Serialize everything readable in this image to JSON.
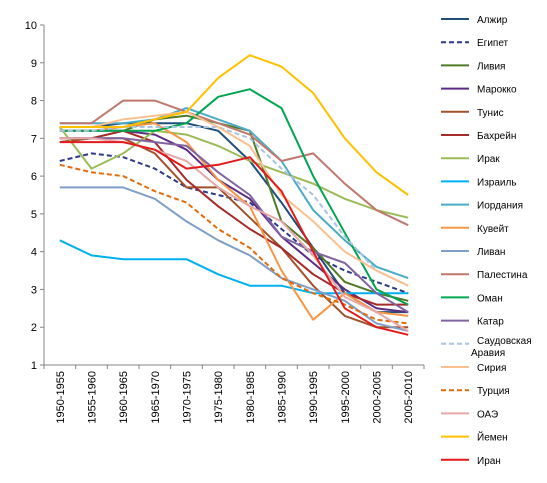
{
  "chart_data": {
    "type": "line",
    "title": "",
    "xlabel": "",
    "ylabel": "",
    "ylim": [
      1,
      10
    ],
    "yticks": [
      "1",
      "2",
      "3",
      "4",
      "5",
      "6",
      "7",
      "8",
      "9",
      "10"
    ],
    "grid": false,
    "legend_position": "right",
    "categories": [
      "1950-1955",
      "1955-1960",
      "1960-1965",
      "1965-1970",
      "1970-1975",
      "1975-1980",
      "1980-1985",
      "1985-1990",
      "1990-1995",
      "1995-2000",
      "2000-2005",
      "2005-2010"
    ],
    "series": [
      {
        "name": "Алжир",
        "color": "#1F4E79",
        "dash": "solid",
        "values": [
          7.3,
          7.3,
          7.4,
          7.4,
          7.4,
          7.2,
          6.4,
          5.3,
          4.1,
          2.9,
          2.4,
          2.4
        ]
      },
      {
        "name": "Египет",
        "color": "#2E3A87",
        "dash": "dashed",
        "values": [
          6.4,
          6.6,
          6.5,
          6.2,
          5.7,
          5.5,
          5.3,
          4.6,
          3.9,
          3.5,
          3.2,
          2.9
        ]
      },
      {
        "name": "Ливия",
        "color": "#4F7A28",
        "dash": "solid",
        "values": [
          6.9,
          7.0,
          7.2,
          7.5,
          7.6,
          7.4,
          7.2,
          4.8,
          4.1,
          3.2,
          2.9,
          2.7
        ]
      },
      {
        "name": "Марокко",
        "color": "#5B2C82",
        "dash": "solid",
        "values": [
          7.2,
          7.2,
          7.2,
          7.1,
          6.7,
          5.9,
          5.4,
          4.4,
          3.7,
          3.0,
          2.5,
          2.4
        ]
      },
      {
        "name": "Тунис",
        "color": "#A0522D",
        "dash": "solid",
        "values": [
          6.9,
          7.0,
          7.0,
          6.6,
          5.7,
          5.7,
          4.9,
          4.1,
          3.1,
          2.3,
          2.0,
          2.0
        ]
      },
      {
        "name": "Бахрейн",
        "color": "#A52A2A",
        "dash": "solid",
        "values": [
          7.0,
          7.0,
          7.2,
          6.9,
          5.9,
          5.2,
          4.6,
          4.1,
          3.4,
          2.9,
          2.6,
          2.6
        ]
      },
      {
        "name": "Ирак",
        "color": "#9BBB59",
        "dash": "solid",
        "values": [
          7.3,
          6.2,
          6.6,
          7.2,
          7.1,
          6.8,
          6.4,
          6.1,
          5.8,
          5.4,
          5.1,
          4.9
        ]
      },
      {
        "name": "Израиль",
        "color": "#00B0F0",
        "dash": "solid",
        "values": [
          4.3,
          3.9,
          3.8,
          3.8,
          3.8,
          3.4,
          3.1,
          3.1,
          2.9,
          2.9,
          2.9,
          2.9
        ]
      },
      {
        "name": "Иордания",
        "color": "#4BACC6",
        "dash": "solid",
        "values": [
          7.4,
          7.4,
          7.4,
          7.5,
          7.8,
          7.5,
          7.2,
          6.4,
          5.1,
          4.3,
          3.6,
          3.3
        ]
      },
      {
        "name": "Кувейт",
        "color": "#F79646",
        "dash": "solid",
        "values": [
          7.2,
          7.2,
          7.3,
          7.4,
          6.9,
          5.9,
          5.2,
          3.5,
          2.2,
          2.9,
          2.4,
          2.3
        ]
      },
      {
        "name": "Ливан",
        "color": "#7F9FC8",
        "dash": "solid",
        "values": [
          5.7,
          5.7,
          5.7,
          5.4,
          4.8,
          4.3,
          3.9,
          3.3,
          3.0,
          2.7,
          2.1,
          1.9
        ]
      },
      {
        "name": "Палестина",
        "color": "#C0786E",
        "dash": "solid",
        "values": [
          7.4,
          7.4,
          8.0,
          8.0,
          7.7,
          7.4,
          7.1,
          6.4,
          6.6,
          5.8,
          5.1,
          4.7
        ]
      },
      {
        "name": "Оман",
        "color": "#00A651",
        "dash": "solid",
        "values": [
          7.2,
          7.2,
          7.2,
          7.2,
          7.4,
          8.1,
          8.3,
          7.8,
          6.0,
          4.5,
          3.0,
          2.6
        ]
      },
      {
        "name": "Катар",
        "color": "#8064A2",
        "dash": "solid",
        "values": [
          7.0,
          7.0,
          7.0,
          6.9,
          6.8,
          6.1,
          5.5,
          4.4,
          4.0,
          3.7,
          2.9,
          2.4
        ]
      },
      {
        "name": "Саудовская Аравия",
        "color": "#A8C4E2",
        "dash": "dashed",
        "values": [
          7.2,
          7.2,
          7.3,
          7.3,
          7.3,
          7.3,
          7.0,
          6.2,
          5.5,
          4.4,
          3.5,
          3.1
        ]
      },
      {
        "name": "Сирия",
        "color": "#FAC090",
        "dash": "solid",
        "values": [
          7.3,
          7.3,
          7.5,
          7.6,
          7.7,
          7.3,
          6.8,
          5.5,
          4.8,
          4.0,
          3.5,
          3.1
        ]
      },
      {
        "name": "Турция",
        "color": "#E26B0A",
        "dash": "dashed",
        "values": [
          6.3,
          6.1,
          6.0,
          5.6,
          5.3,
          4.6,
          4.1,
          3.3,
          2.9,
          2.6,
          2.2,
          2.1
        ]
      },
      {
        "name": "ОАЭ",
        "color": "#E6A8A8",
        "dash": "solid",
        "values": [
          7.0,
          7.0,
          6.9,
          6.7,
          6.4,
          5.7,
          5.2,
          4.8,
          3.9,
          2.8,
          2.4,
          1.9
        ]
      },
      {
        "name": "Йемен",
        "color": "#FFC000",
        "dash": "solid",
        "values": [
          7.3,
          7.3,
          7.3,
          7.5,
          7.7,
          8.6,
          9.2,
          8.9,
          8.2,
          7.0,
          6.1,
          5.5
        ]
      },
      {
        "name": "Иран",
        "color": "#E31A1C",
        "dash": "solid",
        "values": [
          6.9,
          6.9,
          6.9,
          6.7,
          6.2,
          6.3,
          6.5,
          5.6,
          4.0,
          2.5,
          2.0,
          1.8
        ]
      }
    ]
  }
}
